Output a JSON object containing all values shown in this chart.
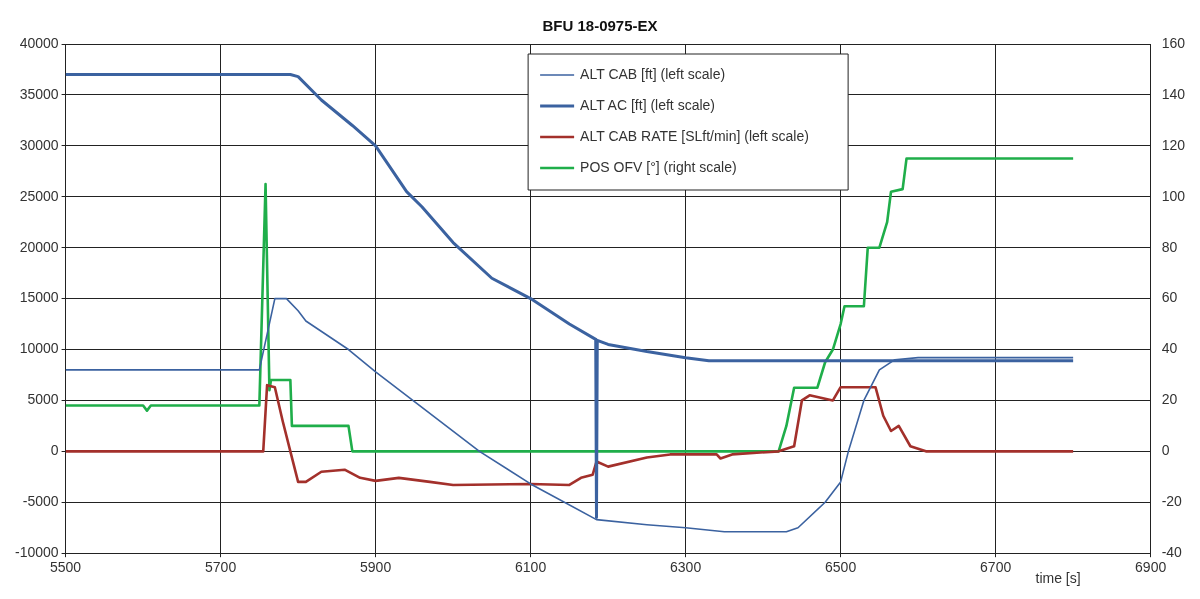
{
  "chart_data": {
    "type": "line",
    "title": "BFU 18-0975-EX",
    "xlabel": "time [s]",
    "xlim": [
      5500,
      6900
    ],
    "xticks": [
      5500,
      5700,
      5900,
      6100,
      6300,
      6500,
      6700,
      6900
    ],
    "ylim": [
      -10000,
      40000
    ],
    "yticks": [
      -10000,
      -5000,
      0,
      5000,
      10000,
      15000,
      20000,
      25000,
      30000,
      35000,
      40000
    ],
    "y2lim": [
      -40,
      160
    ],
    "y2ticks": [
      -40,
      -20,
      0,
      20,
      40,
      60,
      80,
      100,
      120,
      140,
      160
    ],
    "grid": true,
    "legend": "top",
    "marker": "none",
    "line_style": "solid",
    "series": [
      {
        "name": "ALT CAB [ft] (left scale)",
        "color": "#3b62a0",
        "x": [
          5500,
          5750,
          5770,
          5785,
          5800,
          5810,
          5865,
          5900,
          6034,
          6100,
          6185,
          6250,
          6300,
          6350,
          6430,
          6445,
          6480,
          6500,
          6510,
          6530,
          6550,
          6570,
          6600,
          6800
        ],
        "values": [
          8000,
          8000,
          15000,
          15000,
          13800,
          12800,
          10000,
          7800,
          0,
          -3200,
          -6700,
          -7200,
          -7500,
          -7900,
          -7900,
          -7500,
          -5000,
          -3000,
          0,
          5000,
          8000,
          9000,
          9200,
          9200
        ]
      },
      {
        "name": "ALT AC [ft] (left scale)",
        "color": "#3b62a0",
        "x": [
          5500,
          5790,
          5800,
          5830,
          5870,
          5900,
          5940,
          5960,
          6000,
          6050,
          6100,
          6150,
          6184,
          6185,
          6186,
          6200,
          6250,
          6300,
          6330,
          6800
        ],
        "values": [
          37000,
          37000,
          36800,
          34500,
          32000,
          30000,
          25500,
          24000,
          20500,
          17000,
          15000,
          12500,
          11000,
          -6500,
          10900,
          10500,
          9800,
          9200,
          8900,
          8900
        ]
      },
      {
        "name": "ALT CAB RATE [SLft/min] (left scale)",
        "color": "#a3302b",
        "x": [
          5500,
          5755,
          5760,
          5770,
          5780,
          5790,
          5800,
          5810,
          5830,
          5860,
          5880,
          5900,
          5930,
          5970,
          6000,
          6100,
          6150,
          6165,
          6180,
          6185,
          6200,
          6250,
          6280,
          6340,
          6345,
          6360,
          6420,
          6440,
          6450,
          6460,
          6490,
          6500,
          6545,
          6555,
          6565,
          6575,
          6590,
          6610,
          6800
        ],
        "values": [
          0,
          0,
          6500,
          6300,
          3000,
          0,
          -3000,
          -3000,
          -2000,
          -1800,
          -2600,
          -2900,
          -2600,
          -3000,
          -3300,
          -3200,
          -3300,
          -2600,
          -2300,
          -1000,
          -1500,
          -600,
          -300,
          -300,
          -700,
          -300,
          0,
          500,
          5000,
          5500,
          5000,
          6300,
          6300,
          3500,
          2000,
          2500,
          500,
          0,
          0
        ]
      },
      {
        "name": "POS OFV [°] (right scale)",
        "color": "#1fae4a",
        "axis": "y2",
        "x": [
          5500,
          5600,
          5605,
          5610,
          5750,
          5758,
          5763,
          5765,
          5770,
          5790,
          5792,
          5865,
          5870,
          6420,
          6425,
          6430,
          6440,
          6470,
          6480,
          6490,
          6500,
          6505,
          6530,
          6535,
          6550,
          6560,
          6565,
          6580,
          6585,
          6800
        ],
        "values": [
          18,
          18,
          16,
          18,
          18,
          105,
          24,
          28,
          28,
          28,
          10,
          10,
          0,
          0,
          5,
          10,
          25,
          25,
          35,
          40,
          50,
          57,
          57,
          80,
          80,
          90,
          102,
          103,
          115,
          115
        ]
      }
    ]
  }
}
